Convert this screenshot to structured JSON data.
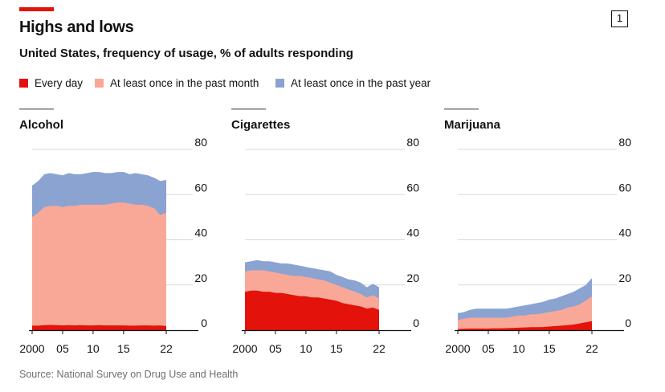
{
  "header": {
    "title": "Highs and lows",
    "subtitle": "United States, frequency of usage, % of adults responding",
    "badge": "1"
  },
  "legend": [
    {
      "label": "Every day",
      "color": "#e3120b"
    },
    {
      "label": "At least once in the past month",
      "color": "#f9a898"
    },
    {
      "label": "At least once in the past year",
      "color": "#8aa3d1"
    }
  ],
  "source": "Source: National Survey on Drug Use and Health",
  "chart_data": [
    {
      "type": "area",
      "title": "Alcohol",
      "x": [
        2000,
        2001,
        2002,
        2003,
        2004,
        2005,
        2006,
        2007,
        2008,
        2009,
        2010,
        2011,
        2012,
        2013,
        2014,
        2015,
        2016,
        2017,
        2018,
        2019,
        2020,
        2021,
        2022
      ],
      "xticks": [
        2000,
        2005,
        2010,
        2015,
        2022
      ],
      "xtick_labels": [
        "2000",
        "05",
        "10",
        "15",
        "22"
      ],
      "ylim": [
        0,
        80
      ],
      "yticks": [
        0,
        20,
        40,
        60,
        80
      ],
      "series": [
        {
          "name": "Every day",
          "values": [
            2,
            2,
            2.2,
            2.3,
            2.2,
            2.1,
            2.2,
            2.1,
            2.2,
            2.1,
            2.1,
            2.2,
            2.1,
            2.1,
            2.1,
            2.1,
            2,
            2,
            2.1,
            2.1,
            2,
            2.1,
            1.8
          ]
        },
        {
          "name": "At least once in the past month",
          "values": [
            50,
            52,
            54.5,
            55,
            55,
            54.5,
            55,
            55,
            55.5,
            55.5,
            55.5,
            55.5,
            55.5,
            56,
            56.5,
            56.5,
            56,
            55.5,
            55.5,
            55,
            54,
            51,
            52
          ]
        },
        {
          "name": "At least once in the past year",
          "values": [
            64,
            66,
            69,
            69.5,
            69,
            68.5,
            69.5,
            69,
            69,
            69.5,
            70,
            70,
            69.5,
            69.5,
            70,
            70,
            69,
            69.5,
            69,
            68.5,
            67.5,
            66,
            66.5
          ]
        }
      ]
    },
    {
      "type": "area",
      "title": "Cigarettes",
      "x": [
        2000,
        2001,
        2002,
        2003,
        2004,
        2005,
        2006,
        2007,
        2008,
        2009,
        2010,
        2011,
        2012,
        2013,
        2014,
        2015,
        2016,
        2017,
        2018,
        2019,
        2020,
        2021,
        2022
      ],
      "xticks": [
        2000,
        2005,
        2010,
        2015,
        2022
      ],
      "xtick_labels": [
        "2000",
        "05",
        "10",
        "15",
        "22"
      ],
      "ylim": [
        0,
        80
      ],
      "yticks": [
        0,
        20,
        40,
        60,
        80
      ],
      "series": [
        {
          "name": "Every day",
          "values": [
            17,
            17.5,
            17.5,
            17,
            17,
            16.5,
            16.5,
            16,
            15.5,
            15,
            15,
            14.5,
            14.5,
            14,
            13.5,
            13,
            12,
            11.5,
            11,
            10.5,
            9.5,
            10,
            9
          ]
        },
        {
          "name": "At least once in the past month",
          "values": [
            26,
            26.5,
            26.5,
            26.5,
            26,
            25.5,
            25,
            24.5,
            24,
            24,
            23.5,
            23,
            22.5,
            22,
            21,
            20,
            19,
            18,
            17,
            16,
            14.5,
            15.5,
            14
          ]
        },
        {
          "name": "At least once in the past year",
          "values": [
            30,
            30.5,
            31,
            30.5,
            30.5,
            30,
            29.5,
            29.5,
            29,
            28.5,
            28,
            27.5,
            27,
            26.5,
            26,
            24.5,
            23.5,
            22.5,
            22,
            21,
            19,
            20.5,
            19
          ]
        }
      ]
    },
    {
      "type": "area",
      "title": "Marijuana",
      "x": [
        2000,
        2001,
        2002,
        2003,
        2004,
        2005,
        2006,
        2007,
        2008,
        2009,
        2010,
        2011,
        2012,
        2013,
        2014,
        2015,
        2016,
        2017,
        2018,
        2019,
        2020,
        2021,
        2022
      ],
      "xticks": [
        2000,
        2005,
        2010,
        2015,
        2022
      ],
      "xtick_labels": [
        "2000",
        "05",
        "10",
        "15",
        "22"
      ],
      "ylim": [
        0,
        80
      ],
      "yticks": [
        0,
        20,
        40,
        60,
        80
      ],
      "series": [
        {
          "name": "Every day",
          "values": [
            0.5,
            0.6,
            0.7,
            0.7,
            0.7,
            0.7,
            0.8,
            0.8,
            0.9,
            1,
            1.1,
            1.2,
            1.3,
            1.3,
            1.4,
            1.6,
            1.8,
            2,
            2.2,
            2.5,
            3,
            3.5,
            4
          ]
        },
        {
          "name": "At least once in the past month",
          "values": [
            4.5,
            5,
            5.5,
            5.5,
            5.5,
            5.5,
            5.5,
            5.5,
            5.5,
            6,
            6.5,
            6.5,
            7,
            7,
            7.5,
            8,
            8.5,
            9,
            10,
            10.5,
            11.5,
            13,
            15
          ]
        },
        {
          "name": "At least once in the past year",
          "values": [
            7.5,
            8,
            9,
            9.5,
            9.5,
            9.5,
            9.5,
            9.5,
            9.5,
            10,
            10.5,
            11,
            11.5,
            12,
            12.5,
            13.5,
            14,
            15,
            16,
            17,
            18.5,
            20,
            23
          ]
        }
      ]
    }
  ]
}
